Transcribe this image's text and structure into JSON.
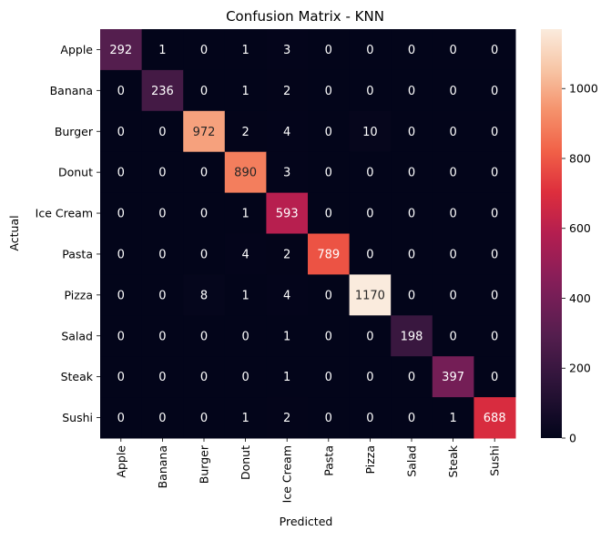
{
  "chart_data": {
    "type": "heatmap",
    "title": "Confusion Matrix - KNN",
    "xlabel": "Predicted",
    "ylabel": "Actual",
    "x_categories": [
      "Apple",
      "Banana",
      "Burger",
      "Donut",
      "Ice Cream",
      "Pasta",
      "Pizza",
      "Salad",
      "Steak",
      "Sushi"
    ],
    "y_categories": [
      "Apple",
      "Banana",
      "Burger",
      "Donut",
      "Ice Cream",
      "Pasta",
      "Pizza",
      "Salad",
      "Steak",
      "Sushi"
    ],
    "values": [
      [
        292,
        1,
        0,
        1,
        3,
        0,
        0,
        0,
        0,
        0
      ],
      [
        0,
        236,
        0,
        1,
        2,
        0,
        0,
        0,
        0,
        0
      ],
      [
        0,
        0,
        972,
        2,
        4,
        0,
        10,
        0,
        0,
        0
      ],
      [
        0,
        0,
        0,
        890,
        3,
        0,
        0,
        0,
        0,
        0
      ],
      [
        0,
        0,
        0,
        1,
        593,
        0,
        0,
        0,
        0,
        0
      ],
      [
        0,
        0,
        0,
        4,
        2,
        789,
        0,
        0,
        0,
        0
      ],
      [
        0,
        0,
        8,
        1,
        4,
        0,
        1170,
        0,
        0,
        0
      ],
      [
        0,
        0,
        0,
        0,
        1,
        0,
        0,
        198,
        0,
        0
      ],
      [
        0,
        0,
        0,
        0,
        1,
        0,
        0,
        0,
        397,
        0
      ],
      [
        0,
        0,
        0,
        1,
        2,
        0,
        0,
        0,
        1,
        688
      ]
    ],
    "colorbar": {
      "colormap": "rocket",
      "range": [
        0,
        1170
      ],
      "ticks": [
        0,
        200,
        400,
        600,
        800,
        1000
      ]
    },
    "grid": false
  }
}
